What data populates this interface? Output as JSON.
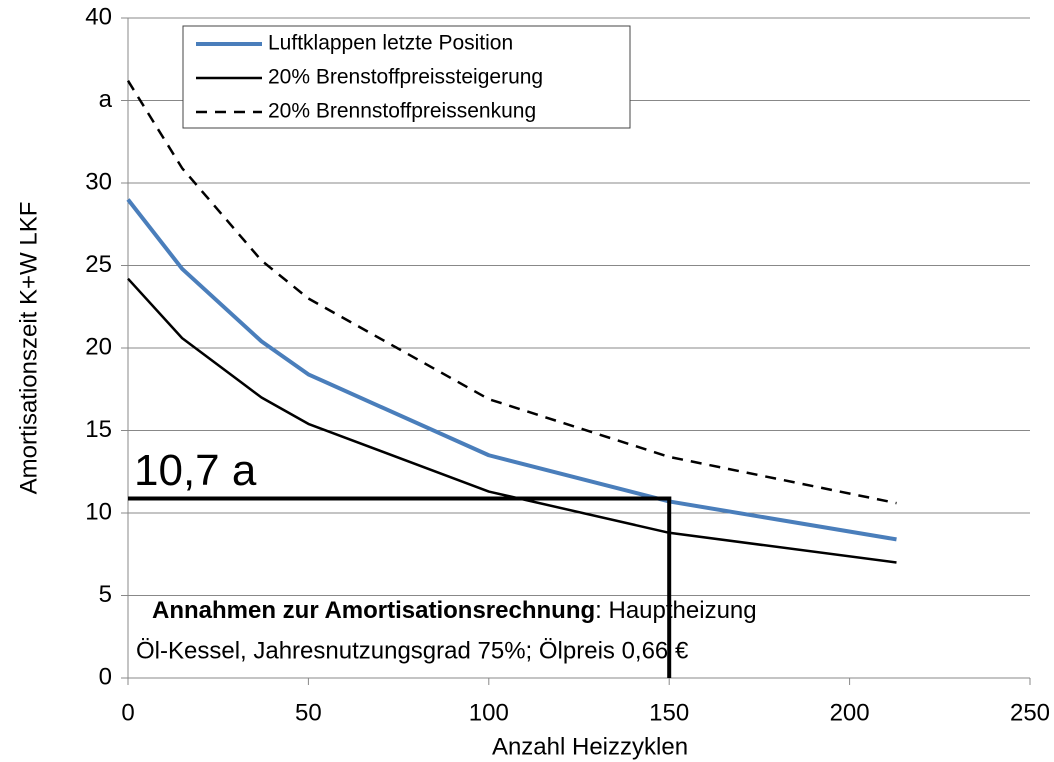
{
  "chart_data": {
    "type": "line",
    "xlabel": "Anzahl Heizzyklen",
    "ylabel": "Amortisationszeit K+W LKF",
    "xlim": [
      0,
      250
    ],
    "xticks": [
      0,
      50,
      100,
      150,
      200,
      250
    ],
    "ylim": [
      0,
      40
    ],
    "yticks": [
      0,
      5,
      10,
      15,
      20,
      25,
      30,
      {
        "value": 35,
        "label": "a"
      },
      40
    ],
    "grid": true,
    "legend": "top",
    "series": [
      {
        "name": "Luftklappen letzte Position",
        "color": "#4a7ebb",
        "style": "solid",
        "x": [
          0,
          15,
          37,
          50,
          100,
          150,
          213
        ],
        "values": [
          29,
          24.8,
          20.4,
          18.4,
          13.5,
          10.7,
          8.4
        ]
      },
      {
        "name": "20% Brenstoffpreissteigerung",
        "color": "#000000",
        "style": "solid",
        "x": [
          0,
          15,
          37,
          50,
          100,
          150,
          213
        ],
        "values": [
          24.2,
          20.6,
          17,
          15.4,
          11.3,
          8.8,
          7
        ]
      },
      {
        "name": "20% Brennstoffpreissenkung",
        "color": "#000000",
        "style": "dashed",
        "x": [
          0,
          15,
          37,
          50,
          100,
          150,
          213
        ],
        "values": [
          36.2,
          30.9,
          25.3,
          23,
          16.9,
          13.4,
          10.6
        ]
      }
    ],
    "marker": {
      "x": 150,
      "y": 10.7,
      "label": "10,7 a"
    },
    "note": {
      "bold": "Annahmen zur Amortisationsrechnung",
      "rest": ": Hauptheizung",
      "line2": "Öl-Kessel, Jahresnutzungsgrad 75%; Ölpreis 0,66 €"
    }
  }
}
